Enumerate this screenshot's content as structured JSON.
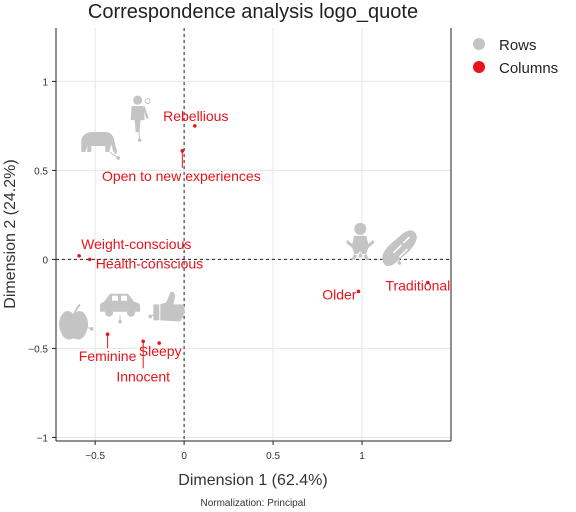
{
  "chart_data": {
    "type": "scatter",
    "title": "Correspondence analysis logo_quote",
    "xlabel": "Dimension 1 (62.4%)",
    "ylabel": "Dimension 2 (24.2%)",
    "note": "Normalization: Principal",
    "xlim": [
      -0.72,
      1.5
    ],
    "ylim": [
      -1.02,
      1.3
    ],
    "x_ticks": [
      -0.5,
      0,
      0.5,
      1
    ],
    "x_tick_labels": [
      "−0.5",
      "0",
      "0.5",
      "1"
    ],
    "y_ticks": [
      -1,
      -0.5,
      0,
      0.5,
      1
    ],
    "y_tick_labels": [
      "−1",
      "−0.5",
      "0",
      "0.5",
      "1"
    ],
    "grid": true,
    "legend_position": "right",
    "legend": [
      {
        "name": "Rows",
        "color": "#c4c4c4"
      },
      {
        "name": "Columns",
        "color": "#e8131b"
      }
    ],
    "series": [
      {
        "name": "Columns",
        "color": "#e8131b",
        "points": [
          {
            "label": "Rebellious",
            "x": 0.06,
            "y": 0.75
          },
          {
            "label": "Open to new experiences",
            "x": -0.01,
            "y": 0.61
          },
          {
            "label": "Weight-conscious",
            "x": -0.59,
            "y": 0.02
          },
          {
            "label": "Health-conscious",
            "x": -0.53,
            "y": 0.0
          },
          {
            "label": "Older",
            "x": 0.98,
            "y": -0.18
          },
          {
            "label": "Traditional",
            "x": 1.37,
            "y": -0.13
          },
          {
            "label": "Feminine",
            "x": -0.43,
            "y": -0.42
          },
          {
            "label": "Sleepy",
            "x": -0.14,
            "y": -0.47
          },
          {
            "label": "Innocent",
            "x": -0.23,
            "y": -0.46
          }
        ]
      },
      {
        "name": "Rows",
        "color": "#c4c4c4",
        "points": [
          {
            "icon": "hiker-icon",
            "x": -0.25,
            "y": 0.67
          },
          {
            "icon": "elephant-icon",
            "x": -0.37,
            "y": 0.57
          },
          {
            "icon": "baby-icon",
            "x": 0.99,
            "y": 0.02
          },
          {
            "icon": "bread-icon",
            "x": 1.21,
            "y": -0.02
          },
          {
            "icon": "apple-icon",
            "x": -0.52,
            "y": -0.39
          },
          {
            "icon": "car-icon",
            "x": -0.36,
            "y": -0.35
          },
          {
            "icon": "thumbs-up-icon",
            "x": -0.19,
            "y": -0.32
          }
        ]
      }
    ]
  }
}
